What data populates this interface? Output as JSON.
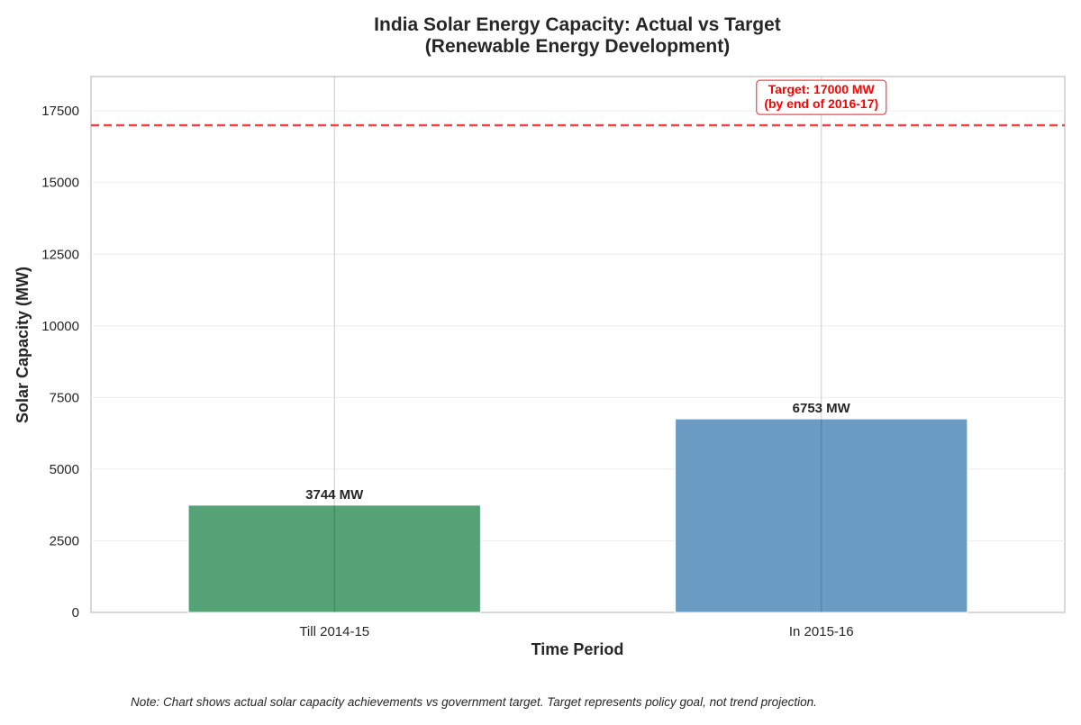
{
  "chart_data": {
    "type": "bar",
    "title_lines": [
      "India Solar Energy Capacity: Actual vs Target",
      "(Renewable Energy Development)"
    ],
    "xlabel": "Time Period",
    "ylabel": "Solar Capacity (MW)",
    "categories": [
      "Till 2014-15",
      "In 2015-16"
    ],
    "values": [
      3744,
      6753
    ],
    "value_labels": [
      "3744 MW",
      "6753 MW"
    ],
    "colors": [
      "#54a275",
      "#6a9bc3"
    ],
    "ylim": [
      0,
      18700
    ],
    "yticks": [
      0,
      2500,
      5000,
      7500,
      10000,
      12500,
      15000,
      17500
    ],
    "ytick_labels": [
      "0",
      "2500",
      "5000",
      "7500",
      "10000",
      "12500",
      "15000",
      "17500"
    ],
    "grid": true,
    "target": {
      "value": 17000,
      "color": "#f04848",
      "label_lines": [
        "Target: 17000 MW",
        "(by end of 2016-17)"
      ]
    },
    "note": "Note: Chart shows actual solar capacity achievements vs government target. Target represents policy goal, not trend projection."
  }
}
